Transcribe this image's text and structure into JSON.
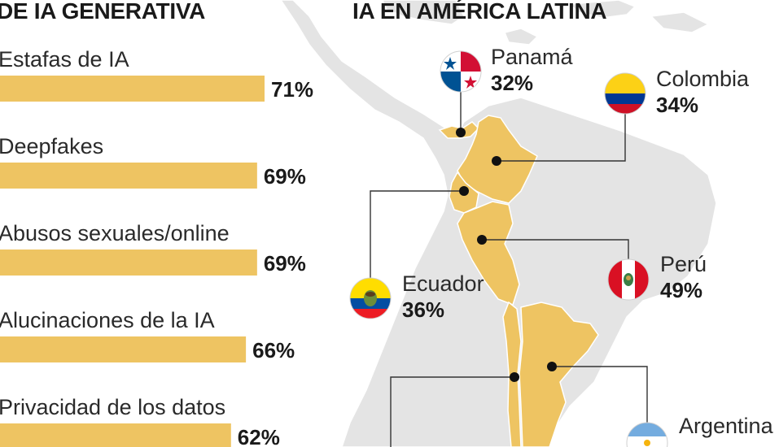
{
  "left_heading": "DE IA GENERATIVA",
  "right_heading": "IA EN AMÉRICA LATINA",
  "chart_data": [
    {
      "type": "bar",
      "orientation": "horizontal",
      "categories": [
        "Estafas de IA",
        "Deepfakes",
        "Abusos sexuales/online",
        "Alucinaciones de la IA",
        "Privacidad de los datos"
      ],
      "values": [
        71,
        69,
        69,
        66,
        62
      ],
      "value_labels": [
        "71%",
        "69%",
        "69%",
        "66%",
        "62%"
      ],
      "title": "DE IA GENERATIVA",
      "bar_color": "#EEC462"
    },
    {
      "type": "map",
      "title": "IA EN AMÉRICA LATINA",
      "highlight_color": "#EEC462",
      "base_color": "#E3E3E3",
      "countries": [
        {
          "name": "Panamá",
          "value": 32,
          "label": "32%",
          "flag": "panama-flag"
        },
        {
          "name": "Colombia",
          "value": 34,
          "label": "34%",
          "flag": "colombia-flag"
        },
        {
          "name": "Ecuador",
          "value": 36,
          "label": "36%",
          "flag": "ecuador-flag"
        },
        {
          "name": "Perú",
          "value": 49,
          "label": "49%",
          "flag": "peru-flag"
        },
        {
          "name": "Argentina",
          "value": null,
          "label": "",
          "flag": "argentina-flag"
        }
      ]
    }
  ]
}
